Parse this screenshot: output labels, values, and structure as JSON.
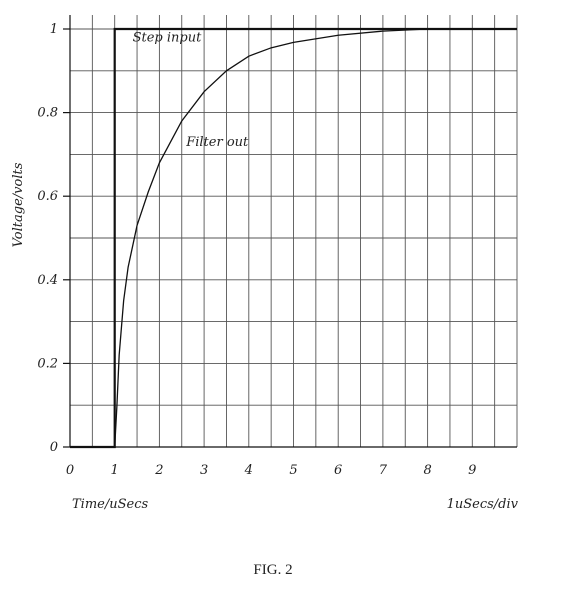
{
  "chart_data": {
    "type": "line",
    "title": "",
    "xlabel": "Time/uSecs",
    "ylabel": "Voltage/volts",
    "scale_note": "1uSecs/div",
    "caption": "FIG. 2",
    "xlim": [
      0,
      10
    ],
    "ylim": [
      0,
      1
    ],
    "x_ticks": [
      "0",
      "1",
      "2",
      "3",
      "4",
      "5",
      "6",
      "7",
      "8",
      "9"
    ],
    "y_ticks": [
      "0",
      "0.2",
      "0.4",
      "0.6",
      "0.8",
      "1"
    ],
    "grid": true,
    "series": [
      {
        "name": "Step input",
        "x": [
          0,
          1,
          1,
          10
        ],
        "y": [
          0,
          0,
          1,
          1
        ]
      },
      {
        "name": "Filter out",
        "x": [
          1,
          1.05,
          1.1,
          1.2,
          1.3,
          1.5,
          1.75,
          2,
          2.5,
          3,
          3.5,
          4,
          4.5,
          5,
          6,
          7,
          8,
          9,
          10
        ],
        "y": [
          0,
          0.1,
          0.22,
          0.35,
          0.43,
          0.53,
          0.61,
          0.68,
          0.78,
          0.85,
          0.9,
          0.935,
          0.955,
          0.968,
          0.985,
          0.995,
          1,
          1,
          1
        ]
      }
    ],
    "annotations": [
      {
        "text": "Step input",
        "x": 1.4,
        "y": 0.98
      },
      {
        "text": "Filter out",
        "x": 2.6,
        "y": 0.73
      }
    ],
    "colors": {
      "grid": "#555555",
      "line": "#111111",
      "text": "#222222"
    }
  }
}
